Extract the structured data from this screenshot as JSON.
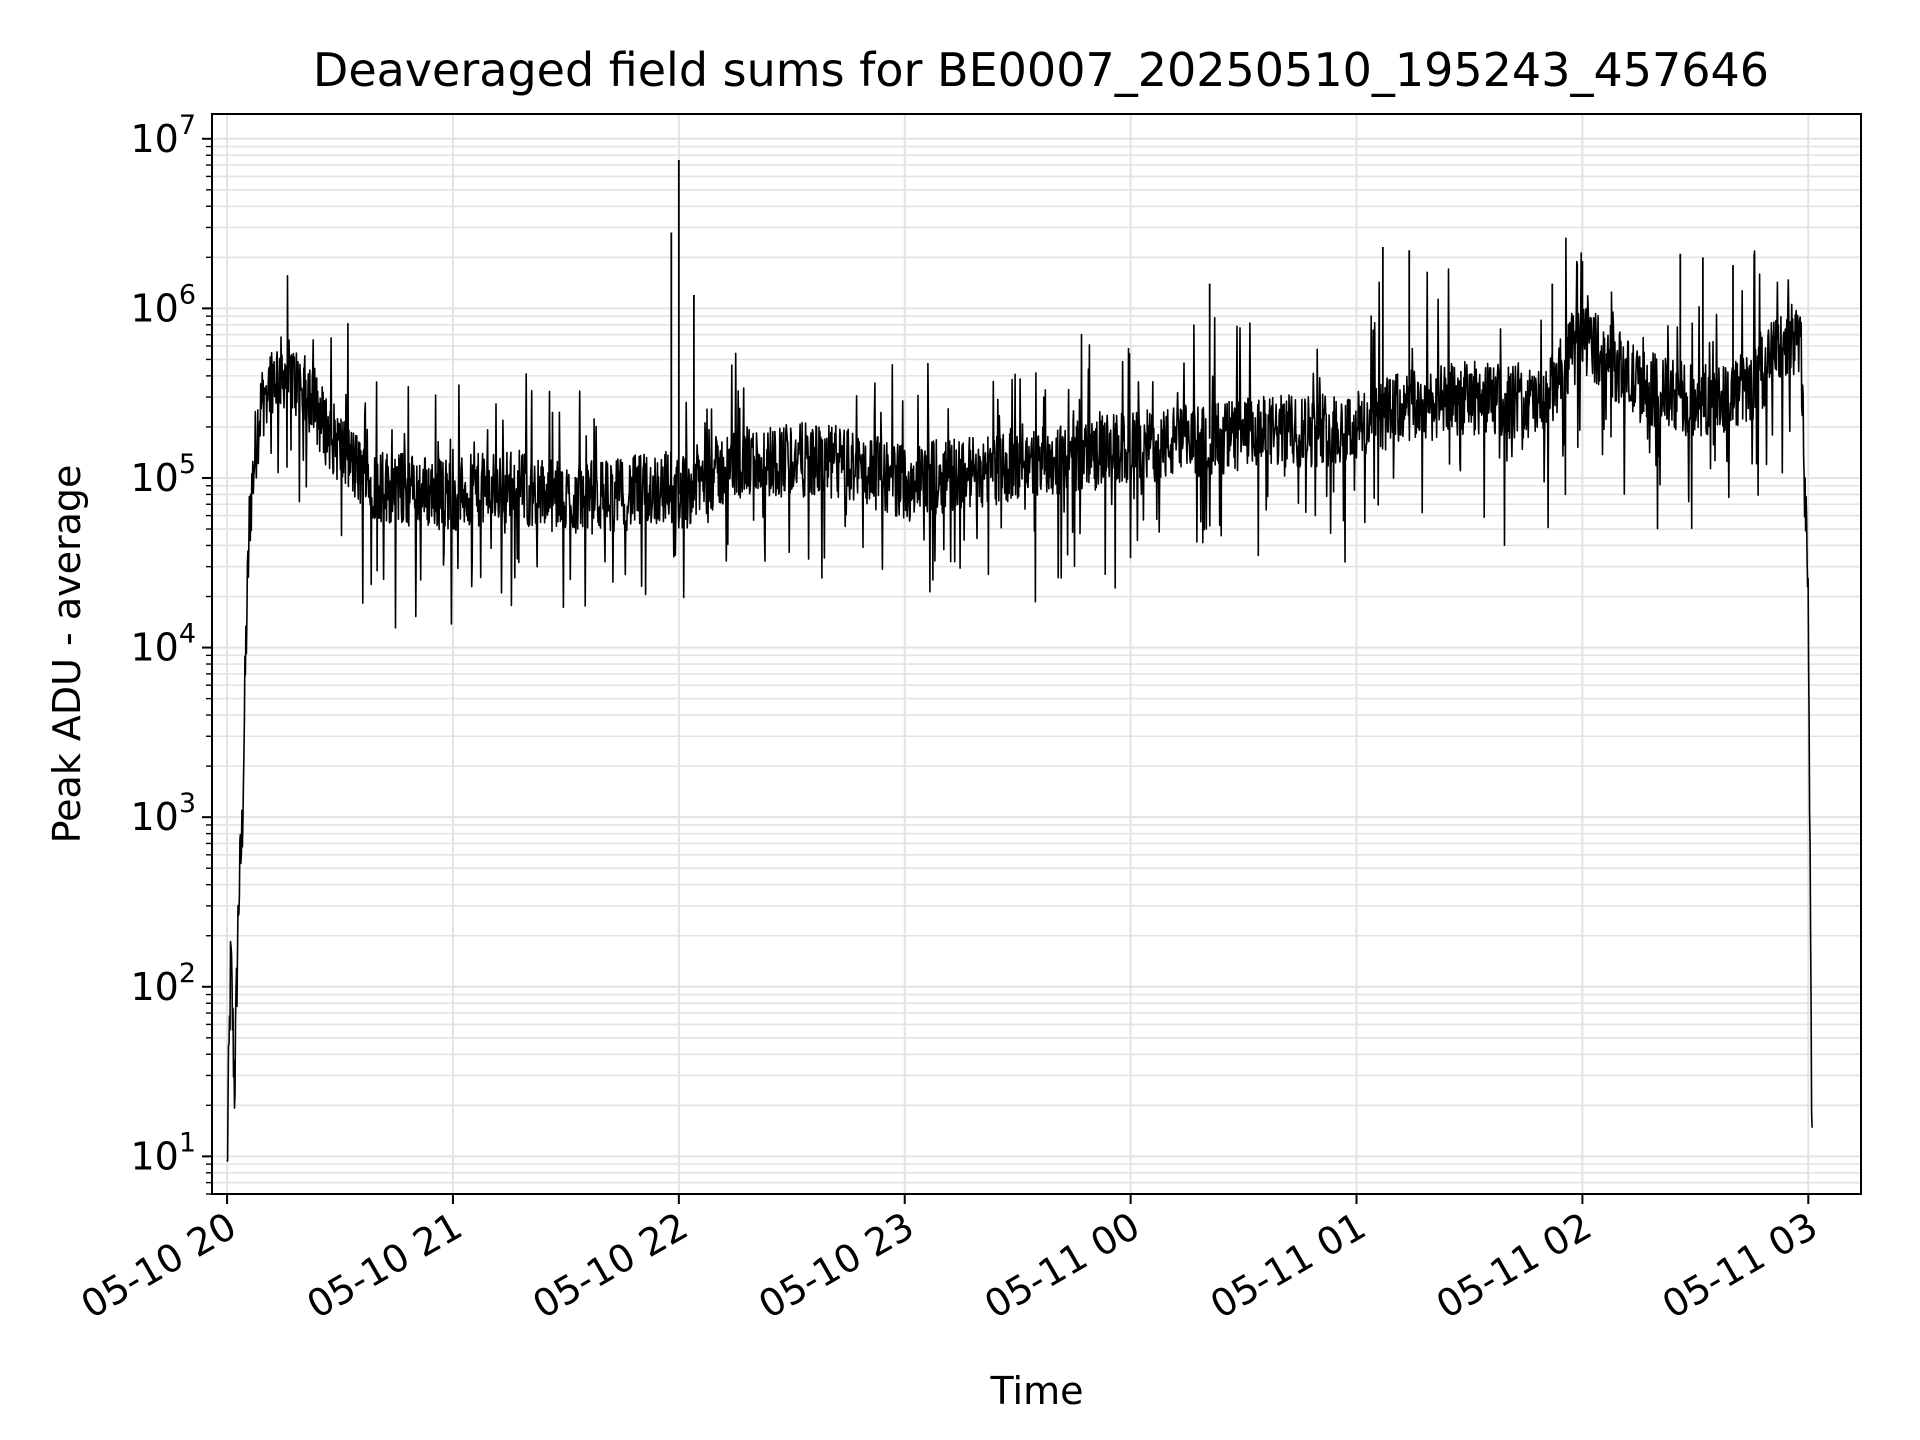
{
  "chart_data": {
    "type": "line",
    "title": "Deaveraged field sums for BE0007_20250510_195243_457646",
    "xlabel": "Time",
    "ylabel": "Peak ADU - average",
    "x_scale": "time",
    "y_scale": "log",
    "xlim": [
      "2025-05-10 19:56",
      "2025-05-11 03:14"
    ],
    "ylim": [
      6,
      14000000
    ],
    "grid": true,
    "x_ticks": [
      "05-10 20",
      "05-10 21",
      "05-10 22",
      "05-10 23",
      "05-11 00",
      "05-11 01",
      "05-11 02",
      "05-11 03"
    ],
    "y_ticks": [
      {
        "base": "10",
        "exp": "1",
        "value": 10
      },
      {
        "base": "10",
        "exp": "2",
        "value": 100
      },
      {
        "base": "10",
        "exp": "3",
        "value": 1000
      },
      {
        "base": "10",
        "exp": "4",
        "value": 10000
      },
      {
        "base": "10",
        "exp": "5",
        "value": 100000
      },
      {
        "base": "10",
        "exp": "6",
        "value": 1000000
      },
      {
        "base": "10",
        "exp": "7",
        "value": 10000000
      }
    ],
    "series": [
      {
        "color": "#000000",
        "x": [
          "2025-05-10 20:00",
          "2025-05-10 20:01",
          "2025-05-10 20:02",
          "2025-05-10 20:03",
          "2025-05-10 20:04",
          "2025-05-10 20:05",
          "2025-05-10 20:06",
          "2025-05-10 20:08",
          "2025-05-10 20:10",
          "2025-05-10 20:12",
          "2025-05-10 20:15",
          "2025-05-10 20:18",
          "2025-05-10 20:22",
          "2025-05-10 20:26",
          "2025-05-10 20:30",
          "2025-05-10 20:35",
          "2025-05-10 20:40",
          "2025-05-10 20:50",
          "2025-05-10 21:00",
          "2025-05-10 21:15",
          "2025-05-10 21:30",
          "2025-05-10 21:45",
          "2025-05-10 21:58",
          "2025-05-10 22:00",
          "2025-05-10 22:05",
          "2025-05-10 22:15",
          "2025-05-10 22:30",
          "2025-05-10 22:45",
          "2025-05-10 23:00",
          "2025-05-10 23:30",
          "2025-05-11 00:00",
          "2025-05-11 00:30",
          "2025-05-11 01:00",
          "2025-05-11 01:10",
          "2025-05-11 01:30",
          "2025-05-11 01:50",
          "2025-05-11 02:00",
          "2025-05-11 02:15",
          "2025-05-11 02:30",
          "2025-05-11 02:45",
          "2025-05-11 02:50",
          "2025-05-11 02:55",
          "2025-05-11 02:58",
          "2025-05-11 03:00",
          "2025-05-11 03:01"
        ],
        "y": [
          8,
          150,
          25,
          300,
          800,
          10000,
          60000,
          200000,
          330000,
          400000,
          420000,
          370000,
          300000,
          200000,
          150000,
          110000,
          90000,
          85000,
          80000,
          90000,
          75000,
          80000,
          90000,
          80000,
          95000,
          120000,
          130000,
          120000,
          95000,
          120000,
          150000,
          180000,
          200000,
          250000,
          300000,
          270000,
          700000,
          350000,
          280000,
          340000,
          500000,
          700000,
          600000,
          20000,
          10
        ]
      }
    ],
    "spikes": [
      {
        "x": "2025-05-10 21:58",
        "y": 2800000
      },
      {
        "x": "2025-05-10 22:00",
        "y": 7500000
      },
      {
        "x": "2025-05-10 22:04",
        "y": 1200000
      },
      {
        "x": "2025-05-11 00:21",
        "y": 1400000
      },
      {
        "x": "2025-05-11 01:07",
        "y": 2300000
      },
      {
        "x": "2025-05-11 01:14",
        "y": 2200000
      },
      {
        "x": "2025-05-11 01:52",
        "y": 1400000
      },
      {
        "x": "2025-05-11 02:00",
        "y": 1900000
      },
      {
        "x": "2025-05-11 02:26",
        "y": 2100000
      },
      {
        "x": "2025-05-11 02:32",
        "y": 2000000
      },
      {
        "x": "2025-05-11 02:40",
        "y": 1800000
      }
    ]
  }
}
